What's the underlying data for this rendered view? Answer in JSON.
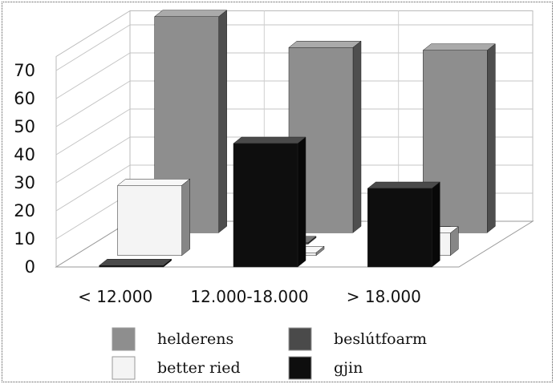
{
  "chart_data": {
    "type": "bar",
    "style": "3d-clustered",
    "categories": [
      "< 12.000",
      "12.000-18.000",
      "> 18.000"
    ],
    "yticks": [
      0,
      10,
      20,
      30,
      40,
      50,
      60,
      70
    ],
    "ylim": [
      0,
      75
    ],
    "grid": true,
    "legend_position": "bottom",
    "series": [
      {
        "name": "helderens",
        "values": [
          77,
          66,
          65
        ],
        "color": "#8e8e8e"
      },
      {
        "name": "beslútfoarm",
        "values": [
          9,
          0.5,
          4
        ],
        "color": "#4a4a4a"
      },
      {
        "name": "better ried",
        "values": [
          25,
          1,
          8
        ],
        "color": "#f4f4f4"
      },
      {
        "name": "gjin",
        "values": [
          0.5,
          44,
          28
        ],
        "color": "#0e0e0e"
      }
    ]
  }
}
